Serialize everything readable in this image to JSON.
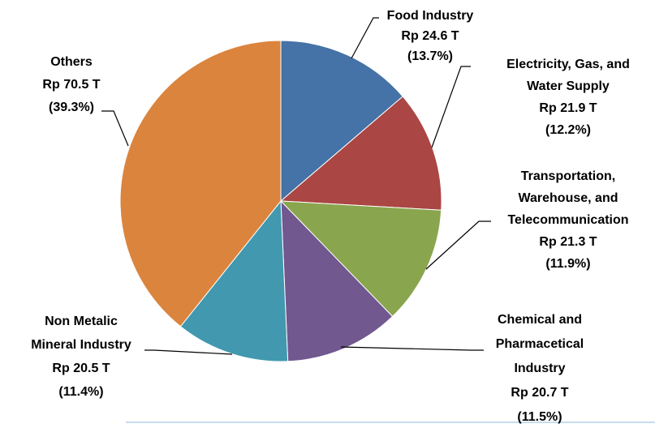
{
  "chart_data": {
    "type": "pie",
    "categories": [
      [
        "Food Industry"
      ],
      [
        "Electricity, Gas, and",
        "Water Supply"
      ],
      [
        "Transportation,",
        "Warehouse, and",
        "Telecommunication"
      ],
      [
        "Chemical and",
        "Pharmacetical",
        "Industry"
      ],
      [
        "Non Metalic",
        "Mineral Industry"
      ],
      [
        "Others"
      ]
    ],
    "values": [
      24.6,
      21.9,
      21.3,
      20.7,
      20.5,
      70.5
    ],
    "value_labels": [
      "Rp 24.6 T",
      "Rp 21.9 T",
      "Rp 21.3 T",
      "Rp 20.7 T",
      "Rp 20.5 T",
      "Rp 70.5 T"
    ],
    "percent_labels": [
      "(13.7%)",
      "(12.2%)",
      "(11.9%)",
      "(11.5%)",
      "(11.4%)",
      "(39.3%)"
    ],
    "colors": [
      "#4572a7",
      "#aa4643",
      "#89a54e",
      "#71588f",
      "#4198af",
      "#db843d"
    ]
  }
}
